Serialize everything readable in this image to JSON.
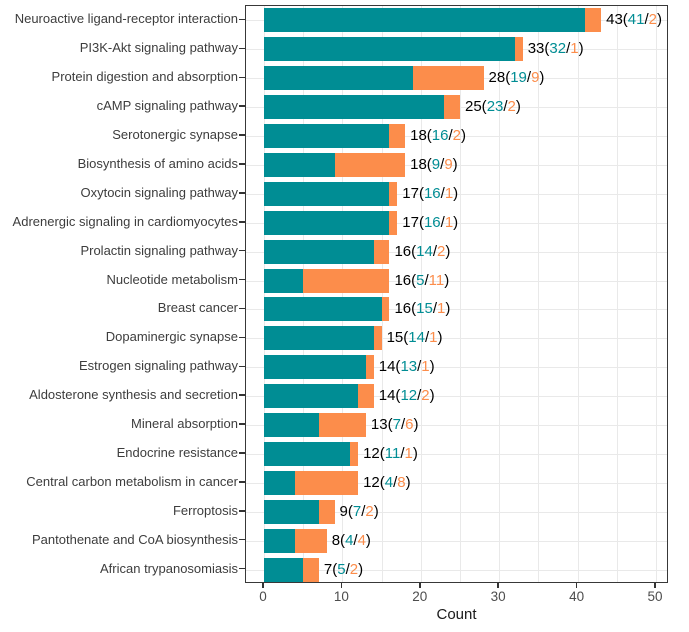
{
  "chart_data": {
    "type": "bar",
    "orientation": "horizontal",
    "stacked": true,
    "title": "",
    "xlabel": "Count",
    "ylabel": "",
    "xlim": [
      0,
      51.7
    ],
    "x_ticks": [
      0,
      10,
      20,
      30,
      40,
      50
    ],
    "x_minor_step": 5,
    "grid": true,
    "legend": "none",
    "label_format": "total(teal/orange)",
    "categories": [
      "Neuroactive ligand-receptor interaction",
      "PI3K-Akt signaling pathway",
      "Protein digestion and absorption",
      "cAMP signaling pathway",
      "Serotonergic synapse",
      "Biosynthesis of amino acids",
      "Oxytocin signaling pathway",
      "Adrenergic signaling in cardiomyocytes",
      "Prolactin signaling pathway",
      "Nucleotide metabolism",
      "Breast cancer",
      "Dopaminergic synapse",
      "Estrogen signaling pathway",
      "Aldosterone synthesis and secretion",
      "Mineral absorption",
      "Endocrine resistance",
      "Central carbon metabolism in cancer",
      "Ferroptosis",
      "Pantothenate and CoA biosynthesis",
      "African trypanosomiasis"
    ],
    "series": [
      {
        "name": "teal-segment",
        "color": "#008D94",
        "values": [
          41,
          32,
          19,
          23,
          16,
          9,
          16,
          16,
          14,
          5,
          15,
          14,
          13,
          12,
          7,
          11,
          4,
          7,
          4,
          5
        ]
      },
      {
        "name": "orange-segment",
        "color": "#FC8D4B",
        "values": [
          2,
          1,
          9,
          2,
          2,
          9,
          1,
          1,
          2,
          11,
          1,
          1,
          1,
          2,
          6,
          1,
          8,
          2,
          4,
          2
        ]
      }
    ],
    "totals": [
      43,
      33,
      28,
      25,
      18,
      18,
      17,
      17,
      16,
      16,
      16,
      15,
      14,
      14,
      13,
      12,
      12,
      9,
      8,
      7
    ]
  },
  "colors": {
    "teal": "#008D94",
    "orange": "#FC8D4B",
    "label_total": "#000000",
    "axis_text": "#4d4d4d",
    "category_text": "#3d3d3d",
    "panel_border": "#383838",
    "gridline": "#e9e9e9",
    "background": "#ffffff"
  }
}
